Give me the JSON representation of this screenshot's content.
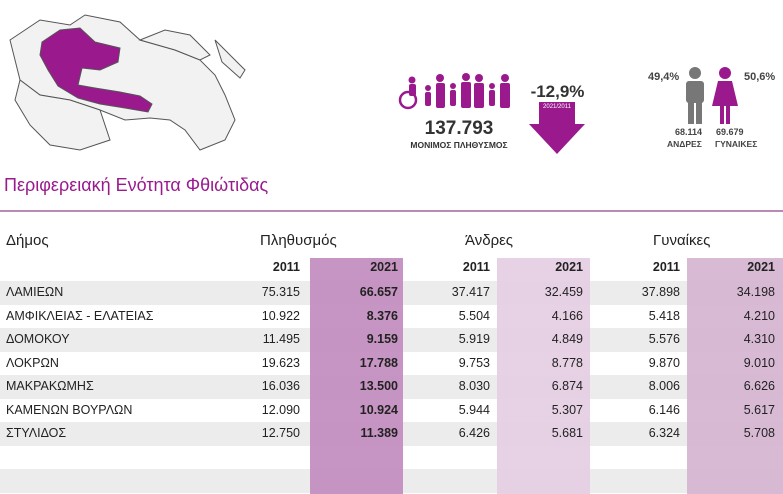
{
  "header": {
    "population": "137.793",
    "population_label": "ΜΟΝΙΜΟΣ ΠΛΗΘΥΣΜΟΣ",
    "change": "-12,9%",
    "change_period": "2021/2011",
    "men_share": "49,4%",
    "women_share": "50,6%",
    "men": "68.114",
    "women": "69.679",
    "men_label": "ΑΝΔΡΕΣ",
    "women_label": "ΓΥΝΑΙΚΕΣ",
    "title": "Περιφερειακή Ενότητα Φθιώτιδας"
  },
  "table": {
    "headers": [
      "Δήμος",
      "Πληθυσμός",
      "Άνδρες",
      "Γυναίκες"
    ],
    "years": [
      "2011",
      "2021",
      "2011",
      "2021",
      "2011",
      "2021"
    ],
    "rows": [
      [
        "ΛΑΜΙΕΩΝ",
        "75.315",
        "66.657",
        "37.417",
        "32.459",
        "37.898",
        "34.198"
      ],
      [
        "ΑΜΦΙΚΛΕΙΑΣ - ΕΛΑΤΕΙΑΣ",
        "10.922",
        "8.376",
        "5.504",
        "4.166",
        "5.418",
        "4.210"
      ],
      [
        "ΔΟΜΟΚΟΥ",
        "11.495",
        "9.159",
        "5.919",
        "4.849",
        "5.576",
        "4.310"
      ],
      [
        "ΛΟΚΡΩΝ",
        "19.623",
        "17.788",
        "9.753",
        "8.778",
        "9.870",
        "9.010"
      ],
      [
        "ΜΑΚΡΑΚΩΜΗΣ",
        "16.036",
        "13.500",
        "8.030",
        "6.874",
        "8.006",
        "6.626"
      ],
      [
        "ΚΑΜΕΝΩΝ ΒΟΥΡΛΩΝ",
        "12.090",
        "10.924",
        "5.944",
        "5.307",
        "6.146",
        "5.617"
      ],
      [
        "ΣΤΥΛΙΔΟΣ",
        "12.750",
        "11.389",
        "6.426",
        "5.681",
        "6.324",
        "5.708"
      ]
    ]
  }
}
